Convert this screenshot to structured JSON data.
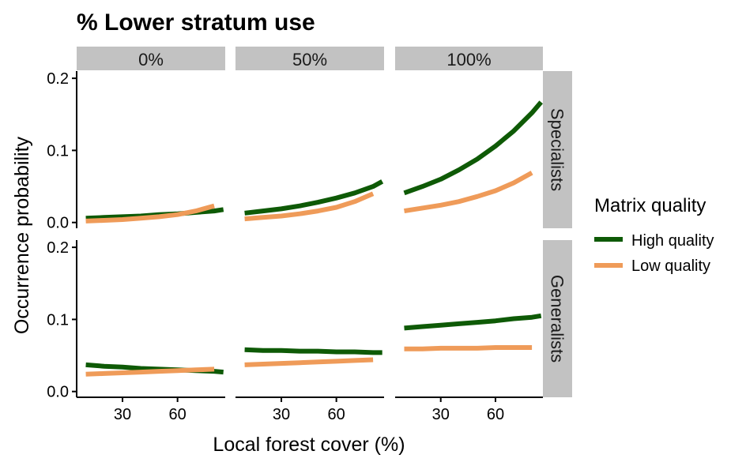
{
  "chart_data": {
    "type": "line",
    "title": "% Lower stratum use",
    "xlabel": "Local forest cover (%)",
    "ylabel": "Occurrence probability",
    "xlim": [
      5,
      86
    ],
    "ylim": [
      -0.008,
      0.21
    ],
    "x_ticks": [
      30,
      60
    ],
    "y_ticks": [
      0.0,
      0.1,
      0.2
    ],
    "y_tick_labels": [
      "0.0",
      "0.1",
      "0.2"
    ],
    "columns": [
      "0%",
      "50%",
      "100%"
    ],
    "rows": [
      "Specialists",
      "Generalists"
    ],
    "legend": {
      "title": "Matrix quality",
      "position": "right",
      "entries": [
        "High quality",
        "Low quality"
      ]
    },
    "series_colors": {
      "High quality": "#0e5a06",
      "Low quality": "#ef9b59"
    },
    "panels": [
      {
        "column": "0%",
        "row": "Specialists",
        "series": [
          {
            "name": "High quality",
            "x": [
              10,
              20,
              30,
              40,
              50,
              60,
              70,
              80,
              85
            ],
            "y": [
              0.006,
              0.007,
              0.008,
              0.009,
              0.011,
              0.012,
              0.014,
              0.016,
              0.018
            ]
          },
          {
            "name": "Low quality",
            "x": [
              10,
              20,
              30,
              40,
              50,
              60,
              70,
              80
            ],
            "y": [
              0.002,
              0.003,
              0.004,
              0.006,
              0.008,
              0.011,
              0.016,
              0.023
            ]
          }
        ]
      },
      {
        "column": "50%",
        "row": "Specialists",
        "series": [
          {
            "name": "High quality",
            "x": [
              10,
              20,
              30,
              40,
              50,
              60,
              70,
              80,
              85
            ],
            "y": [
              0.013,
              0.016,
              0.019,
              0.023,
              0.028,
              0.034,
              0.041,
              0.05,
              0.057
            ]
          },
          {
            "name": "Low quality",
            "x": [
              10,
              20,
              30,
              40,
              50,
              60,
              70,
              80
            ],
            "y": [
              0.005,
              0.007,
              0.009,
              0.012,
              0.016,
              0.021,
              0.029,
              0.04
            ]
          }
        ]
      },
      {
        "column": "100%",
        "row": "Specialists",
        "series": [
          {
            "name": "High quality",
            "x": [
              10,
              20,
              30,
              40,
              50,
              60,
              70,
              80,
              85
            ],
            "y": [
              0.041,
              0.05,
              0.06,
              0.073,
              0.088,
              0.106,
              0.127,
              0.152,
              0.167
            ]
          },
          {
            "name": "Low quality",
            "x": [
              10,
              20,
              30,
              40,
              50,
              60,
              70,
              80
            ],
            "y": [
              0.016,
              0.02,
              0.024,
              0.029,
              0.036,
              0.044,
              0.055,
              0.069
            ]
          }
        ]
      },
      {
        "column": "0%",
        "row": "Generalists",
        "series": [
          {
            "name": "High quality",
            "x": [
              10,
              20,
              30,
              40,
              50,
              60,
              70,
              80,
              85
            ],
            "y": [
              0.037,
              0.035,
              0.034,
              0.032,
              0.031,
              0.03,
              0.029,
              0.028,
              0.027
            ]
          },
          {
            "name": "Low quality",
            "x": [
              10,
              20,
              30,
              40,
              50,
              60,
              70,
              80
            ],
            "y": [
              0.024,
              0.025,
              0.026,
              0.027,
              0.028,
              0.029,
              0.03,
              0.031
            ]
          }
        ]
      },
      {
        "column": "50%",
        "row": "Generalists",
        "series": [
          {
            "name": "High quality",
            "x": [
              10,
              20,
              30,
              40,
              50,
              60,
              70,
              80,
              85
            ],
            "y": [
              0.058,
              0.057,
              0.057,
              0.056,
              0.056,
              0.055,
              0.055,
              0.054,
              0.054
            ]
          },
          {
            "name": "Low quality",
            "x": [
              10,
              20,
              30,
              40,
              50,
              60,
              70,
              80
            ],
            "y": [
              0.037,
              0.038,
              0.039,
              0.04,
              0.041,
              0.042,
              0.043,
              0.044
            ]
          }
        ]
      },
      {
        "column": "100%",
        "row": "Generalists",
        "series": [
          {
            "name": "High quality",
            "x": [
              10,
              20,
              30,
              40,
              50,
              60,
              70,
              80,
              85
            ],
            "y": [
              0.088,
              0.09,
              0.092,
              0.094,
              0.096,
              0.098,
              0.101,
              0.103,
              0.105
            ]
          },
          {
            "name": "Low quality",
            "x": [
              10,
              20,
              30,
              40,
              50,
              60,
              70,
              80
            ],
            "y": [
              0.059,
              0.059,
              0.06,
              0.06,
              0.06,
              0.061,
              0.061,
              0.061
            ]
          }
        ]
      }
    ]
  }
}
